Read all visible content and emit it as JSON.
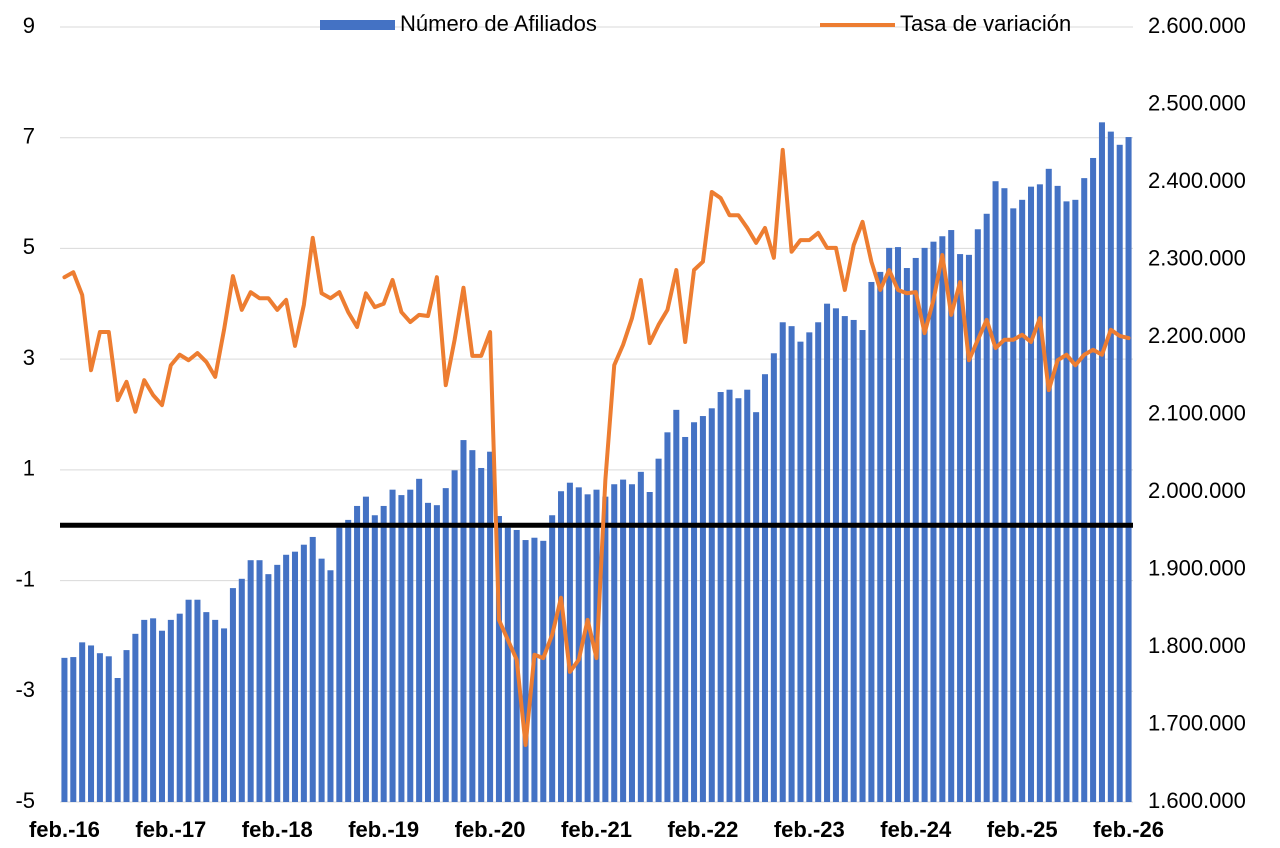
{
  "chart_data": {
    "type": "bar-line",
    "categories": [
      "feb.-16",
      null,
      null,
      null,
      null,
      null,
      null,
      null,
      null,
      null,
      null,
      null,
      "feb.-17",
      null,
      null,
      null,
      null,
      null,
      null,
      null,
      null,
      null,
      null,
      null,
      "feb.-18",
      null,
      null,
      null,
      null,
      null,
      null,
      null,
      null,
      null,
      null,
      null,
      "feb.-19",
      null,
      null,
      null,
      null,
      null,
      null,
      null,
      null,
      null,
      null,
      null,
      "feb.-20",
      null,
      null,
      null,
      null,
      null,
      null,
      null,
      null,
      null,
      null,
      null,
      "feb.-21",
      null,
      null,
      null,
      null,
      null,
      null,
      null,
      null,
      null,
      null,
      null,
      "feb.-22",
      null,
      null,
      null,
      null,
      null,
      null,
      null,
      null,
      null,
      null,
      null,
      "feb.-23",
      null,
      null,
      null,
      null,
      null,
      null,
      null,
      null,
      null,
      null,
      null,
      "feb.-24",
      null,
      null,
      null,
      null,
      null,
      null,
      null,
      null,
      null,
      null,
      null,
      "feb.-25",
      null,
      null,
      null,
      null,
      null,
      null,
      null,
      null,
      null,
      null,
      null,
      "feb.-26"
    ],
    "series": [
      {
        "name": "Número de Afiliados",
        "kind": "bar",
        "axis": "y2",
        "color": "#4472c4",
        "values": [
          1786000,
          1787000,
          1806000,
          1802000,
          1792000,
          1788000,
          1760000,
          1796000,
          1817000,
          1835000,
          1837000,
          1821000,
          1835000,
          1843000,
          1861000,
          1861000,
          1845000,
          1835000,
          1824000,
          1876000,
          1888000,
          1912000,
          1912000,
          1894000,
          1906000,
          1919000,
          1923000,
          1932000,
          1942000,
          1914000,
          1899000,
          1954000,
          1964000,
          1982000,
          1994000,
          1970000,
          1982000,
          2003000,
          1996000,
          2003000,
          2017000,
          1986000,
          1983000,
          2005000,
          2028000,
          2067000,
          2054000,
          2031000,
          2052000,
          1969000,
          1954000,
          1951000,
          1938000,
          1941000,
          1937000,
          1970000,
          2001000,
          2012000,
          2006000,
          1997000,
          2003000,
          1994000,
          2010000,
          2016000,
          2010000,
          2026000,
          2000000,
          2043000,
          2077000,
          2106000,
          2071000,
          2090000,
          2098000,
          2108000,
          2129000,
          2132000,
          2121000,
          2132000,
          2103000,
          2152000,
          2179000,
          2219000,
          2214000,
          2194000,
          2206000,
          2219000,
          2243000,
          2237000,
          2227000,
          2222000,
          2209000,
          2271000,
          2284000,
          2315000,
          2316000,
          2289000,
          2302000,
          2315000,
          2323000,
          2330000,
          2338000,
          2307000,
          2306000,
          2339000,
          2359000,
          2401000,
          2392000,
          2366000,
          2377000,
          2394000,
          2397000,
          2417000,
          2395000,
          2375000,
          2377000,
          2405000,
          2431000,
          2477000,
          2465000,
          2448000,
          2458000
        ]
      },
      {
        "name": "Tasa de variación",
        "kind": "line",
        "axis": "y",
        "color": "#ed7d31",
        "values": [
          4.48,
          4.57,
          4.16,
          2.8,
          3.49,
          3.49,
          2.26,
          2.59,
          2.05,
          2.62,
          2.35,
          2.17,
          2.89,
          3.08,
          2.98,
          3.11,
          2.95,
          2.68,
          3.53,
          4.5,
          3.89,
          4.21,
          4.1,
          4.1,
          3.89,
          4.07,
          3.24,
          3.98,
          5.19,
          4.19,
          4.1,
          4.21,
          3.85,
          3.58,
          4.19,
          3.94,
          4.0,
          4.43,
          3.85,
          3.67,
          3.8,
          3.78,
          4.48,
          2.53,
          3.35,
          4.29,
          3.06,
          3.06,
          3.49,
          -1.71,
          -2.07,
          -2.43,
          -3.97,
          -2.34,
          -2.4,
          -1.98,
          -1.31,
          -2.65,
          -2.43,
          -1.71,
          -2.4,
          0.82,
          2.89,
          3.26,
          3.74,
          4.43,
          3.29,
          3.62,
          3.89,
          4.61,
          3.31,
          4.61,
          4.76,
          6.02,
          5.91,
          5.6,
          5.6,
          5.37,
          5.1,
          5.37,
          4.83,
          6.78,
          4.94,
          5.15,
          5.15,
          5.28,
          5.01,
          5.01,
          4.25,
          5.06,
          5.48,
          4.76,
          4.25,
          4.61,
          4.25,
          4.19,
          4.21,
          3.47,
          4.07,
          4.88,
          3.8,
          4.39,
          2.98,
          3.35,
          3.71,
          3.2,
          3.35,
          3.35,
          3.44,
          3.31,
          3.74,
          2.44,
          2.98,
          3.08,
          2.89,
          3.08,
          3.17,
          3.08,
          3.53,
          3.42,
          3.38
        ]
      }
    ],
    "ylim": [
      -5,
      9
    ],
    "yticks": [
      -5,
      -3,
      -1,
      1,
      3,
      5,
      7,
      9
    ],
    "y2lim": [
      1600000,
      2600000
    ],
    "y2ticks": [
      {
        "value": 1600000,
        "label": "1.600.000"
      },
      {
        "value": 1700000,
        "label": "1.700.000"
      },
      {
        "value": 1800000,
        "label": "1.800.000"
      },
      {
        "value": 1900000,
        "label": "1.900.000"
      },
      {
        "value": 2000000,
        "label": "2.000.000"
      },
      {
        "value": 2100000,
        "label": "2.100.000"
      },
      {
        "value": 2200000,
        "label": "2.200.000"
      },
      {
        "value": 2300000,
        "label": "2.300.000"
      },
      {
        "value": 2400000,
        "label": "2.400.000"
      },
      {
        "value": 2500000,
        "label": "2.500.000"
      },
      {
        "value": 2600000,
        "label": "2.600.000"
      }
    ],
    "hline": 0,
    "grid": true,
    "legend": "top"
  }
}
